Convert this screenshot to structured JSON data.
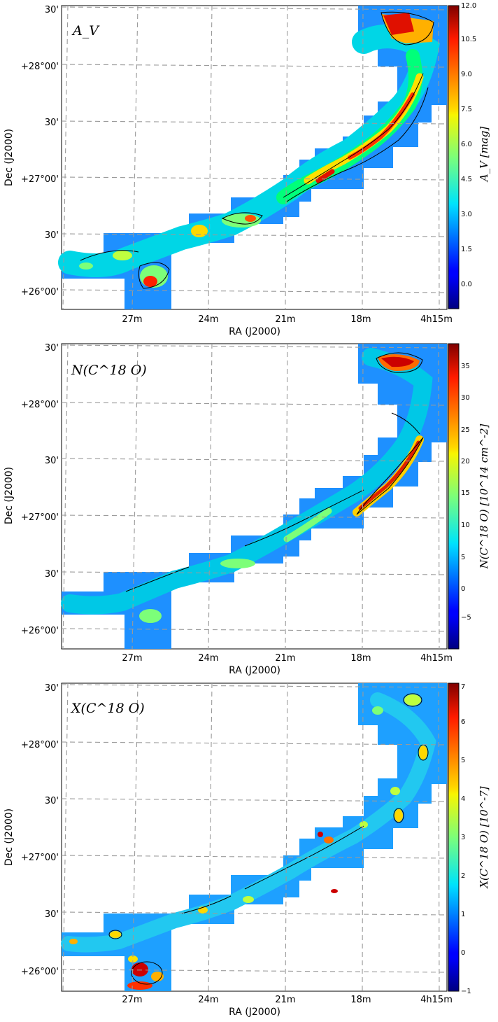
{
  "chart_data": [
    {
      "type": "heatmap",
      "panel_label": "A_V",
      "xlabel": "RA (J2000)",
      "ylabel": "Dec (J2000)",
      "x_ticks": [
        "27m",
        "24m",
        "21m",
        "18m",
        "4h15m"
      ],
      "y_ticks": [
        "30'",
        "+28°00'",
        "30'",
        "+27°00'",
        "30'",
        "+26°00'"
      ],
      "colorbar": {
        "label": "A_V [mag]",
        "range": [
          -1.0,
          12.0
        ],
        "ticks": [
          "0.0",
          "1.5",
          "3.0",
          "4.5",
          "6.0",
          "7.5",
          "9.0",
          "10.5",
          "12.0"
        ],
        "colormap": "jet"
      },
      "grid": true,
      "contours": true
    },
    {
      "type": "heatmap",
      "panel_label": "N(C^18 O)",
      "xlabel": "RA (J2000)",
      "ylabel": "Dec (J2000)",
      "x_ticks": [
        "27m",
        "24m",
        "21m",
        "18m",
        "4h15m"
      ],
      "y_ticks": [
        "30'",
        "+28°00'",
        "30'",
        "+27°00'",
        "30'",
        "+26°00'"
      ],
      "colorbar": {
        "label": "N(C^18 O) [10^14 cm^-2]",
        "range": [
          -10,
          38
        ],
        "ticks": [
          "−5",
          "0",
          "5",
          "10",
          "15",
          "20",
          "25",
          "30",
          "35"
        ],
        "colormap": "jet"
      },
      "grid": true,
      "contours": true
    },
    {
      "type": "heatmap",
      "panel_label": "X(C^18 O)",
      "xlabel": "RA (J2000)",
      "ylabel": "Dec (J2000)",
      "x_ticks": [
        "27m",
        "24m",
        "21m",
        "18m",
        "4h15m"
      ],
      "y_ticks": [
        "30'",
        "+28°00'",
        "30'",
        "+27°00'",
        "30'",
        "+26°00'"
      ],
      "colorbar": {
        "label": "X(C^18 O) [10^-7]",
        "range": [
          -1,
          7
        ],
        "ticks": [
          "−1",
          "0",
          "1",
          "2",
          "3",
          "4",
          "5",
          "6",
          "7"
        ],
        "colormap": "jet"
      },
      "grid": true,
      "contours": true
    }
  ]
}
